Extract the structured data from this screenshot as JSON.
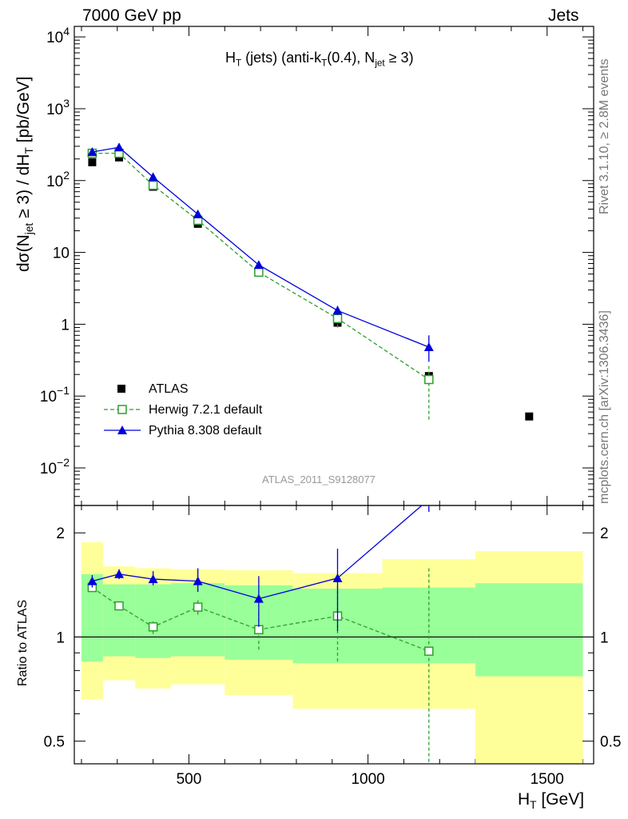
{
  "header": {
    "left": "7000 GeV pp",
    "right": "Jets"
  },
  "side_labels": {
    "rivet": "Rivet 3.1.10, ≥ 2.8M events",
    "mcplots": "mcplots.cern.ch [arXiv:1306.3436]"
  },
  "watermark": "ATLAS_2011_S9128077",
  "title": {
    "a": "H",
    "a_sub": "T",
    "b": " (jets) (anti-k",
    "b_sub": "T",
    "c": "(0.4), N",
    "c_sub": "jet",
    "d": " ≥ 3)"
  },
  "ylabel_main": {
    "a": "dσ(N",
    "a_sub": "jet",
    "b": " ≥ 3) / dH",
    "b_sub": "T",
    "c": " [pb/GeV]"
  },
  "ylabel_ratio": "Ratio to ATLAS",
  "xlabel": {
    "a": "H",
    "a_sub": "T",
    "b": " [GeV]"
  },
  "legend": {
    "atlas": "ATLAS",
    "herwig": "Herwig 7.2.1 default",
    "pythia": "Pythia 8.308 default"
  },
  "colors": {
    "data": "#000000",
    "herwig": "#2ca02c",
    "pythia": "#0000dd",
    "band_inner": "#99ff99",
    "band_outer": "#ffff99"
  },
  "chart_data": [
    {
      "type": "scatter",
      "title": "H_T (jets) (anti-k_T(0.4), N_jet ≥ 3)",
      "xlabel": "H_T [GeV]",
      "ylabel": "dσ(N_jet ≥ 3) / dH_T [pb/GeV]",
      "yscale": "log",
      "xlim": [
        180,
        1630
      ],
      "ylim": [
        0.003,
        14000
      ],
      "x_ticks": [
        "500",
        "1000",
        "1500"
      ],
      "y_ticks": [
        "10^-2",
        "10^-1",
        "1",
        "10",
        "10^2",
        "10^3",
        "10^4"
      ],
      "bins": [
        [
          200,
          260
        ],
        [
          260,
          350
        ],
        [
          350,
          450
        ],
        [
          450,
          600
        ],
        [
          600,
          790
        ],
        [
          790,
          1040
        ],
        [
          1040,
          1300
        ],
        [
          1300,
          1600
        ]
      ],
      "x": [
        230,
        305,
        400,
        525,
        695,
        915,
        1170,
        1450
      ],
      "series": [
        {
          "name": "ATLAS",
          "values": [
            180,
            210,
            82,
            25,
            5.5,
            1.05,
            0.19,
            0.052
          ]
        },
        {
          "name": "Herwig 7.2.1 default",
          "values": [
            240,
            240,
            86,
            28,
            5.3,
            1.2,
            0.17,
            null
          ],
          "err_low": [
            210,
            225,
            80,
            26,
            4.9,
            0.9,
            0.047,
            null
          ],
          "err_high": [
            270,
            255,
            92,
            30,
            5.8,
            1.45,
            0.28,
            null
          ]
        },
        {
          "name": "Pythia 8.308 default",
          "values": [
            250,
            290,
            112,
            34,
            6.7,
            1.55,
            0.48,
            null
          ],
          "err_low": [
            240,
            280,
            106,
            32,
            6.1,
            1.35,
            0.3,
            null
          ],
          "err_high": [
            262,
            300,
            118,
            36,
            7.4,
            1.8,
            0.7,
            null
          ]
        }
      ],
      "legend_position": "bottom-left"
    },
    {
      "type": "scatter",
      "ylabel": "Ratio to ATLAS",
      "xlabel": "H_T [GeV]",
      "yscale": "log",
      "xlim": [
        180,
        1630
      ],
      "ylim": [
        0.43,
        2.4
      ],
      "y_ticks": [
        "0.5",
        "1",
        "2"
      ],
      "bins": [
        [
          200,
          260
        ],
        [
          260,
          350
        ],
        [
          350,
          450
        ],
        [
          450,
          600
        ],
        [
          600,
          790
        ],
        [
          790,
          1040
        ],
        [
          1040,
          1300
        ],
        [
          1300,
          1600
        ]
      ],
      "band_outer": [
        [
          0.66,
          1.88
        ],
        [
          0.75,
          1.6
        ],
        [
          0.71,
          1.58
        ],
        [
          0.73,
          1.57
        ],
        [
          0.68,
          1.56
        ],
        [
          0.62,
          1.53
        ],
        [
          0.62,
          1.68
        ],
        [
          0.43,
          1.77
        ]
      ],
      "band_inner": [
        [
          0.85,
          1.52
        ],
        [
          0.88,
          1.42
        ],
        [
          0.87,
          1.42
        ],
        [
          0.88,
          1.43
        ],
        [
          0.86,
          1.41
        ],
        [
          0.84,
          1.38
        ],
        [
          0.84,
          1.39
        ],
        [
          0.77,
          1.43
        ]
      ],
      "x": [
        230,
        305,
        400,
        525,
        695,
        915,
        1170
      ],
      "series": [
        {
          "name": "Herwig 7.2.1 default",
          "values": [
            1.39,
            1.23,
            1.07,
            1.22,
            1.05,
            1.15,
            0.91
          ],
          "err_low": [
            1.36,
            1.2,
            1.02,
            1.16,
            0.92,
            0.85,
            0.3
          ],
          "err_high": [
            1.42,
            1.26,
            1.11,
            1.28,
            1.17,
            1.55,
            1.6
          ]
        },
        {
          "name": "Pythia 8.308 default",
          "values": [
            1.45,
            1.52,
            1.47,
            1.45,
            1.29,
            1.48,
            2.5
          ],
          "err_low": [
            1.39,
            1.47,
            1.41,
            1.35,
            1.07,
            1.04,
            2.3
          ],
          "err_high": [
            1.51,
            1.57,
            1.55,
            1.58,
            1.5,
            1.8,
            2.7
          ]
        }
      ]
    }
  ]
}
